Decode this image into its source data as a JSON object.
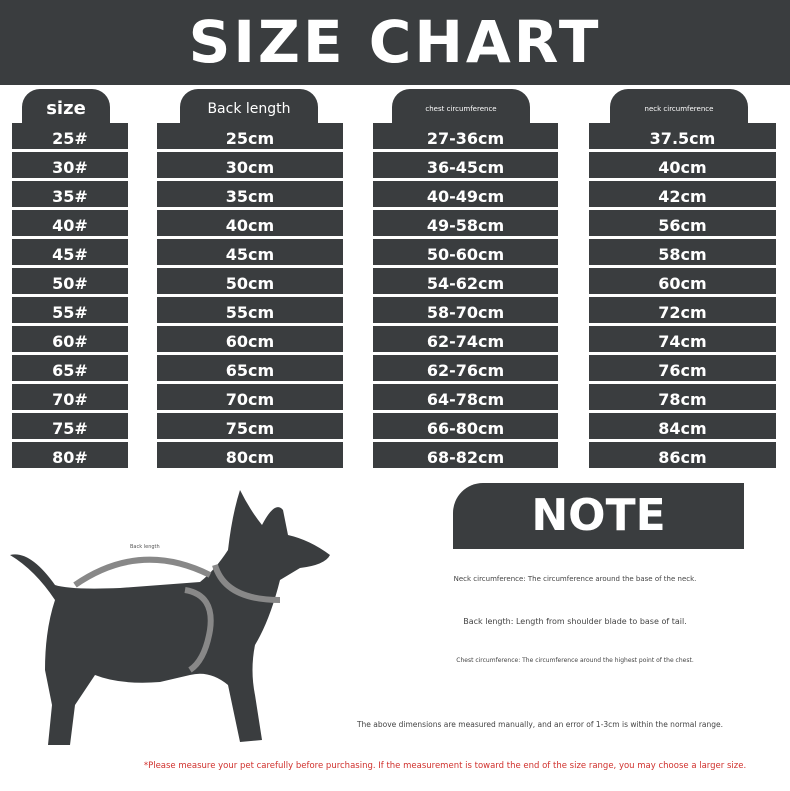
{
  "header": {
    "title": "SIZE CHART"
  },
  "table": {
    "columns": [
      {
        "header": "size",
        "cells": [
          "25#",
          "30#",
          "35#",
          "40#",
          "45#",
          "50#",
          "55#",
          "60#",
          "65#",
          "70#",
          "75#",
          "80#"
        ]
      },
      {
        "header": "Back length",
        "cells": [
          "25cm",
          "30cm",
          "35cm",
          "40cm",
          "45cm",
          "50cm",
          "55cm",
          "60cm",
          "65cm",
          "70cm",
          "75cm",
          "80cm"
        ]
      },
      {
        "header": "chest circumference",
        "cells": [
          "27-36cm",
          "36-45cm",
          "40-49cm",
          "49-58cm",
          "50-60cm",
          "54-62cm",
          "58-70cm",
          "62-74cm",
          "62-76cm",
          "64-78cm",
          "66-80cm",
          "68-82cm"
        ]
      },
      {
        "header": "neck circumference",
        "cells": [
          "37.5cm",
          "40cm",
          "42cm",
          "56cm",
          "58cm",
          "60cm",
          "72cm",
          "74cm",
          "76cm",
          "78cm",
          "84cm",
          "86cm"
        ]
      }
    ]
  },
  "illustration": {
    "labels": [
      "Back length"
    ]
  },
  "note": {
    "title": "NOTE",
    "lines": [
      "Neck circumference: The circumference around the base of the neck.",
      "Back length: Length from shoulder blade to base of tail.",
      "Chest circumference: The circumference around the highest point of the chest.",
      "The above dimensions are measured manually, and an error of 1-3cm is within the normal range."
    ]
  },
  "footer": {
    "disclaimer": "*Please measure your pet carefully before purchasing. If the measurement is toward the end of the size range, you may choose a larger size."
  }
}
